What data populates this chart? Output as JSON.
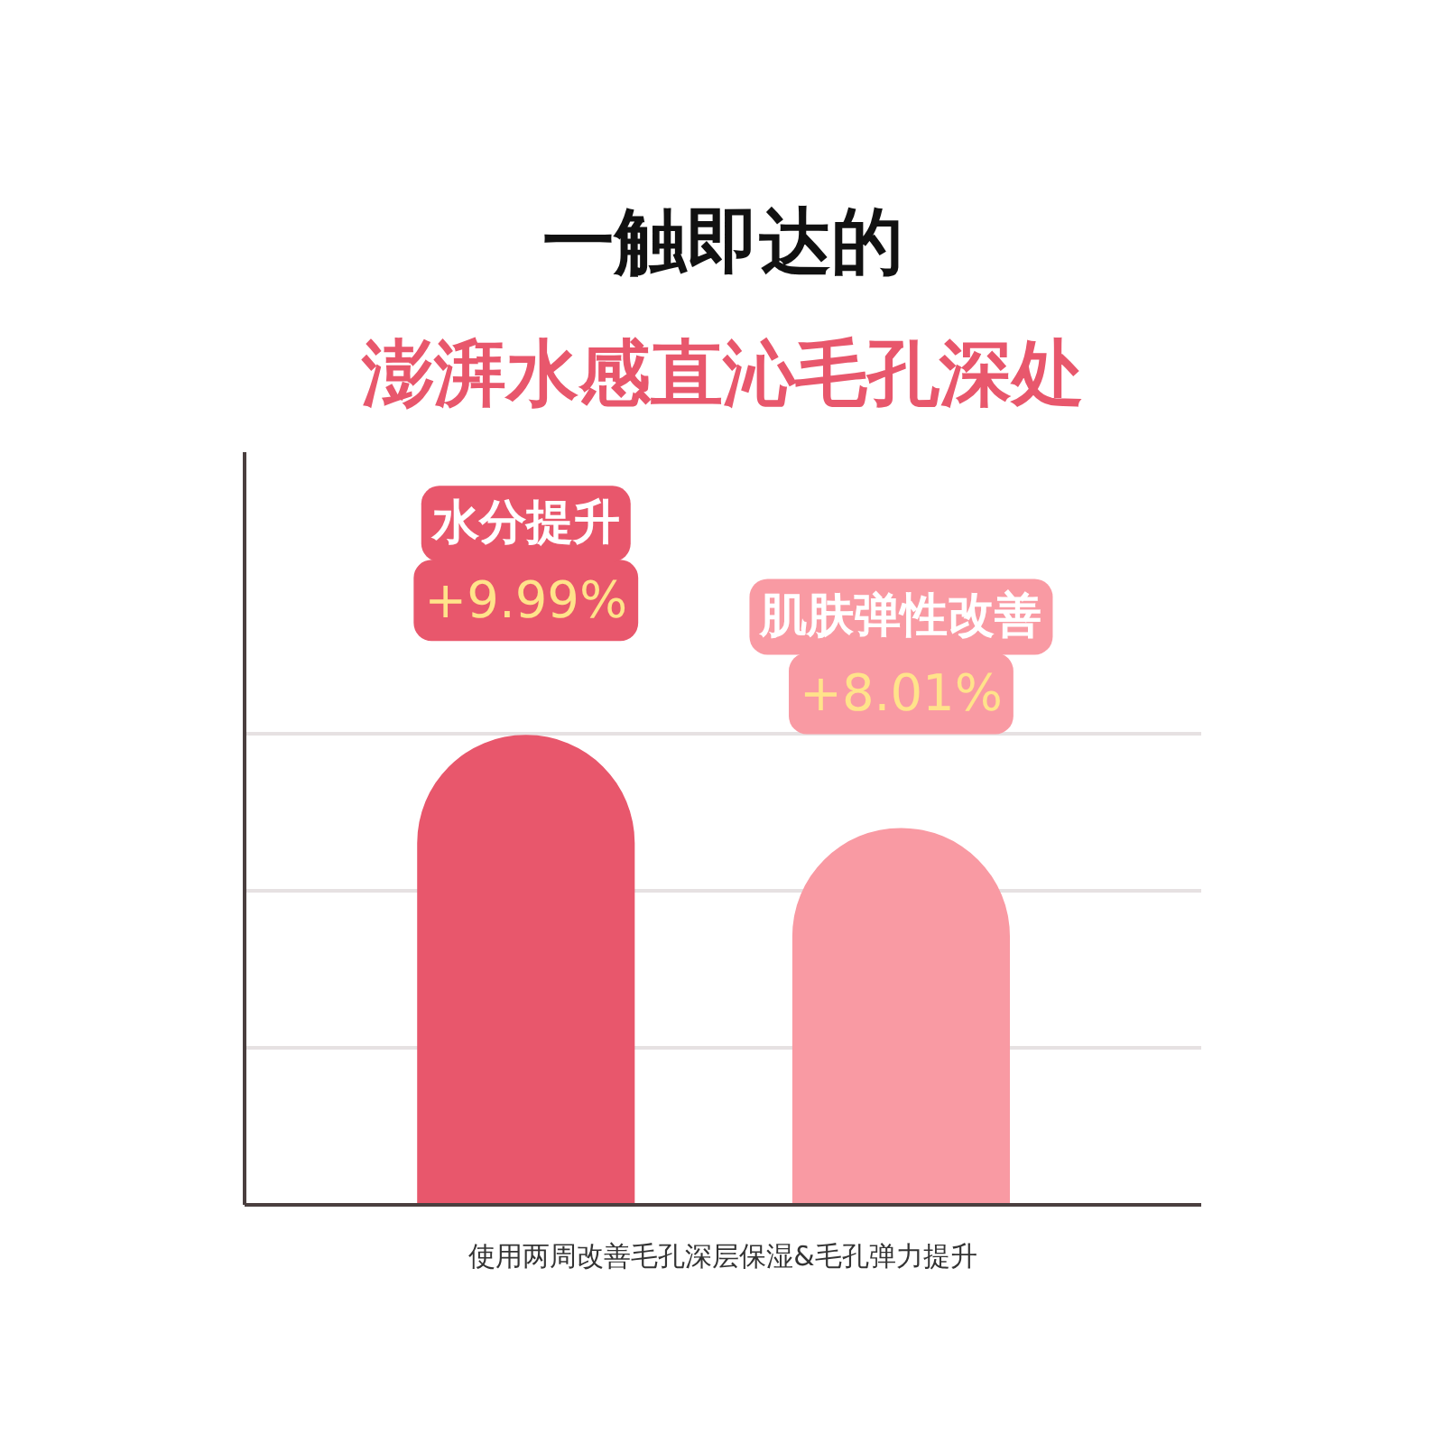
{
  "chart_data": {
    "type": "bar",
    "title": "一触即达的",
    "subtitle": "澎湃水感直沁毛孔深处",
    "categories": [
      "水分提升",
      "肌肤弹性改善"
    ],
    "values": [
      9.99,
      8.01
    ],
    "value_labels": [
      "+9.99%",
      "+8.01%"
    ],
    "colors": [
      "#e8576c",
      "#f99aa3"
    ],
    "ylim": [
      0,
      16
    ],
    "yticks": [
      {
        "value": 3.33,
        "label": null
      },
      {
        "value": 6.67,
        "label": null
      },
      {
        "value": 10,
        "label": null
      }
    ],
    "grid": "y",
    "annotations": [
      "使用两周改善毛孔深层保湿&毛孔弹力提升"
    ]
  }
}
